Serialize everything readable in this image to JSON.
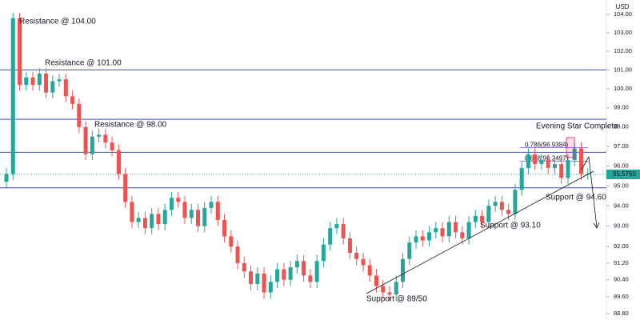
{
  "chart_data": {
    "type": "candlestick",
    "axis_title": "USD",
    "log_scale": true,
    "ylim": [
      88.5,
      104.8
    ],
    "yticks": [
      {
        "value": 104,
        "label": "104.00"
      },
      {
        "value": 103,
        "label": "103.00"
      },
      {
        "value": 102,
        "label": "102.00"
      },
      {
        "value": 101,
        "label": "101.00"
      },
      {
        "value": 100,
        "label": "100.00"
      },
      {
        "value": 99,
        "label": "99.00"
      },
      {
        "value": 98,
        "label": "98.00"
      },
      {
        "value": 97,
        "label": "97.00"
      },
      {
        "value": 96,
        "label": "96.00"
      },
      {
        "value": 95,
        "label": "95.00"
      },
      {
        "value": 94,
        "label": "94.00"
      },
      {
        "value": 93,
        "label": "93.00"
      },
      {
        "value": 92,
        "label": "92.00"
      },
      {
        "value": 91.2,
        "label": "91.20"
      },
      {
        "value": 90.4,
        "label": "90.40"
      },
      {
        "value": 89.6,
        "label": "89.60"
      },
      {
        "value": 88.8,
        "label": "88.80"
      }
    ],
    "up_color": "#26a69a",
    "down_color": "#ef5350",
    "candles": [
      [
        95.2,
        95.9,
        94.9,
        95.6
      ],
      [
        95.6,
        104.1,
        95.3,
        103.8
      ],
      [
        103.8,
        104.1,
        99.9,
        100.2
      ],
      [
        100.2,
        100.9,
        99.9,
        100.6
      ],
      [
        100.6,
        100.9,
        99.9,
        100.2
      ],
      [
        100.2,
        101.1,
        99.9,
        100.8
      ],
      [
        100.8,
        101.1,
        99.5,
        99.8
      ],
      [
        99.8,
        100.7,
        99.5,
        100.4
      ],
      [
        100.4,
        100.8,
        100.1,
        100.5
      ],
      [
        100.5,
        100.8,
        99.3,
        99.6
      ],
      [
        99.6,
        99.9,
        98.9,
        99.2
      ],
      [
        99.2,
        99.5,
        97.7,
        98.0
      ],
      [
        98.0,
        98.3,
        96.3,
        96.6
      ],
      [
        96.6,
        97.8,
        96.3,
        97.5
      ],
      [
        97.5,
        97.9,
        97.2,
        97.6
      ],
      [
        97.6,
        97.9,
        96.9,
        97.2
      ],
      [
        97.2,
        97.5,
        96.5,
        96.8
      ],
      [
        96.8,
        97.1,
        95.3,
        95.6
      ],
      [
        95.6,
        95.9,
        93.9,
        94.2
      ],
      [
        94.2,
        94.5,
        92.9,
        93.2
      ],
      [
        93.2,
        93.7,
        92.9,
        93.4
      ],
      [
        93.4,
        93.7,
        92.6,
        92.9
      ],
      [
        92.9,
        93.9,
        92.6,
        93.6
      ],
      [
        93.6,
        93.9,
        92.8,
        93.1
      ],
      [
        93.1,
        94.1,
        92.8,
        93.8
      ],
      [
        93.8,
        94.7,
        93.5,
        94.4
      ],
      [
        94.4,
        94.7,
        93.9,
        94.2
      ],
      [
        94.2,
        94.5,
        93.1,
        93.4
      ],
      [
        93.4,
        94.1,
        93.1,
        93.8
      ],
      [
        93.8,
        94.1,
        92.7,
        93.0
      ],
      [
        93.0,
        94.2,
        92.7,
        93.9
      ],
      [
        93.9,
        94.5,
        93.6,
        94.2
      ],
      [
        94.2,
        94.5,
        93.0,
        93.3
      ],
      [
        93.3,
        93.6,
        92.2,
        92.5
      ],
      [
        92.5,
        92.8,
        91.7,
        92.0
      ],
      [
        92.0,
        92.3,
        90.9,
        91.2
      ],
      [
        91.2,
        91.5,
        90.5,
        90.8
      ],
      [
        90.8,
        91.1,
        89.9,
        90.2
      ],
      [
        90.2,
        91.0,
        89.9,
        90.7
      ],
      [
        90.7,
        91.0,
        89.5,
        89.8
      ],
      [
        89.8,
        90.6,
        89.5,
        90.3
      ],
      [
        90.3,
        91.2,
        90.0,
        90.9
      ],
      [
        90.9,
        91.2,
        90.1,
        90.4
      ],
      [
        90.4,
        91.3,
        90.1,
        91.0
      ],
      [
        91.0,
        91.6,
        90.7,
        91.3
      ],
      [
        91.3,
        91.6,
        90.3,
        90.6
      ],
      [
        90.6,
        90.9,
        90.0,
        90.3
      ],
      [
        90.3,
        91.6,
        90.0,
        91.3
      ],
      [
        91.3,
        92.4,
        91.0,
        92.1
      ],
      [
        92.1,
        93.2,
        91.8,
        92.9
      ],
      [
        92.9,
        93.4,
        92.6,
        93.1
      ],
      [
        93.1,
        93.4,
        92.1,
        92.4
      ],
      [
        92.4,
        92.7,
        91.4,
        91.7
      ],
      [
        91.7,
        92.0,
        91.1,
        91.4
      ],
      [
        91.4,
        91.7,
        90.8,
        91.1
      ],
      [
        91.1,
        91.4,
        90.3,
        90.6
      ],
      [
        90.6,
        90.9,
        89.8,
        90.1
      ],
      [
        90.1,
        90.4,
        89.5,
        89.8
      ],
      [
        89.8,
        90.1,
        89.4,
        89.7
      ],
      [
        89.7,
        90.6,
        89.4,
        90.3
      ],
      [
        90.3,
        91.7,
        90.0,
        91.4
      ],
      [
        91.4,
        92.5,
        91.1,
        92.2
      ],
      [
        92.2,
        92.8,
        91.9,
        92.5
      ],
      [
        92.5,
        92.8,
        92.0,
        92.3
      ],
      [
        92.3,
        93.0,
        92.0,
        92.7
      ],
      [
        92.7,
        93.2,
        92.4,
        92.9
      ],
      [
        92.9,
        93.2,
        92.2,
        92.5
      ],
      [
        92.5,
        93.5,
        92.2,
        93.2
      ],
      [
        93.2,
        93.5,
        92.4,
        92.7
      ],
      [
        92.7,
        93.0,
        92.1,
        92.4
      ],
      [
        92.4,
        93.5,
        92.1,
        93.2
      ],
      [
        93.2,
        93.8,
        92.9,
        93.5
      ],
      [
        93.5,
        93.8,
        92.9,
        93.2
      ],
      [
        93.2,
        94.3,
        92.9,
        94.0
      ],
      [
        94.0,
        94.5,
        93.7,
        94.2
      ],
      [
        94.2,
        94.5,
        93.5,
        93.8
      ],
      [
        93.8,
        94.1,
        93.3,
        93.6
      ],
      [
        93.6,
        95.1,
        93.3,
        94.8
      ],
      [
        94.8,
        96.2,
        94.5,
        95.9
      ],
      [
        95.9,
        96.9,
        95.6,
        96.6
      ],
      [
        96.6,
        96.9,
        95.8,
        96.1
      ],
      [
        96.1,
        96.6,
        95.8,
        96.3
      ],
      [
        96.3,
        96.6,
        95.6,
        95.9
      ],
      [
        95.9,
        96.4,
        95.6,
        96.1
      ],
      [
        96.1,
        96.4,
        95.1,
        95.4
      ],
      [
        95.4,
        96.6,
        95.1,
        96.3
      ],
      [
        96.3,
        97.2,
        96.0,
        96.9
      ],
      [
        96.9,
        97.2,
        95.3,
        95.6
      ],
      [
        95.6,
        95.9,
        95.3,
        95.6
      ]
    ],
    "levels": [
      101.0,
      98.4,
      96.7,
      94.9
    ],
    "level_color": "#3f51b5",
    "fib_levels": [
      {
        "value": 96.9384,
        "label": "0.786(96.9384)"
      },
      {
        "value": 96.2497,
        "label": "0.618(96.2497)"
      }
    ],
    "last_price": {
      "value": 95.576,
      "label": "95.5760"
    },
    "annotations": [
      "Resistance @ 104.00",
      "Resistance @ 101.00",
      "Resistance @ 98.00",
      "Evening Star Complete",
      "Support @ 94.60",
      "Support @ 93.10",
      "Support @ 89/50"
    ]
  }
}
